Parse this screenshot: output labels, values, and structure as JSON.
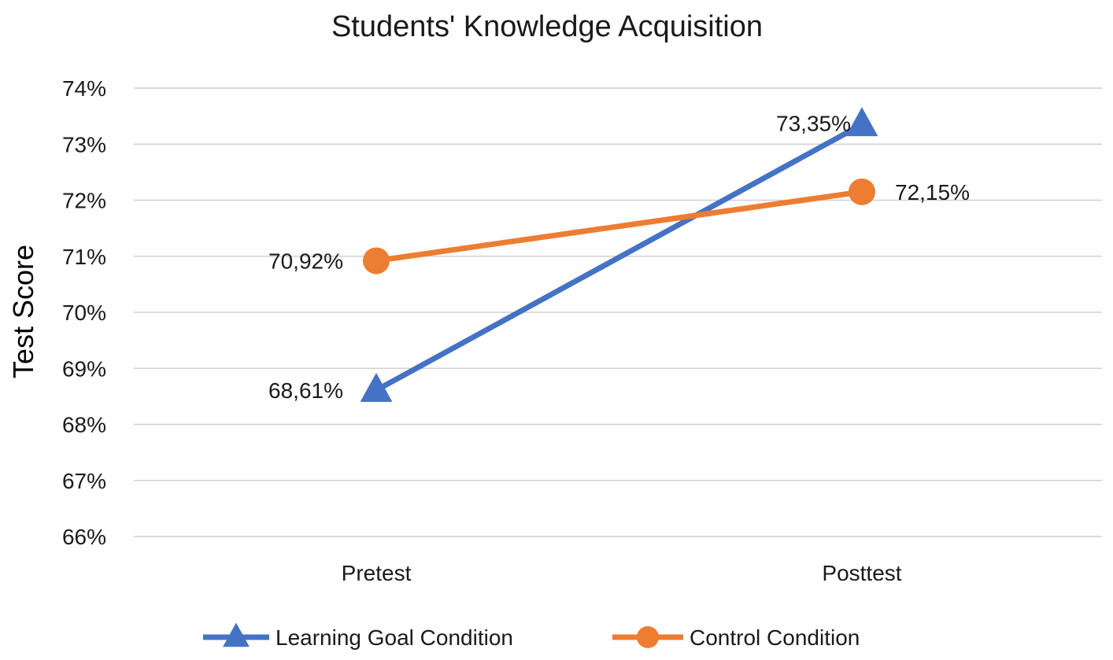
{
  "chart_data": {
    "type": "line",
    "title": "Students' Knowledge Acquisition",
    "xlabel": "",
    "ylabel": "Test Score",
    "categories": [
      "Pretest",
      "Posttest"
    ],
    "ylim": [
      66,
      74
    ],
    "yticks": [
      "66%",
      "67%",
      "68%",
      "69%",
      "70%",
      "71%",
      "72%",
      "73%",
      "74%"
    ],
    "grid": true,
    "legend_position": "bottom",
    "series": [
      {
        "name": "Learning Goal Condition",
        "values": [
          68.61,
          73.35
        ],
        "labels": [
          "68,61%",
          "73,35%"
        ],
        "color": "#4472C4",
        "marker": "triangle"
      },
      {
        "name": "Control Condition",
        "values": [
          70.92,
          72.15
        ],
        "labels": [
          "70,92%",
          "72,15%"
        ],
        "color": "#ED7D31",
        "marker": "circle"
      }
    ]
  }
}
